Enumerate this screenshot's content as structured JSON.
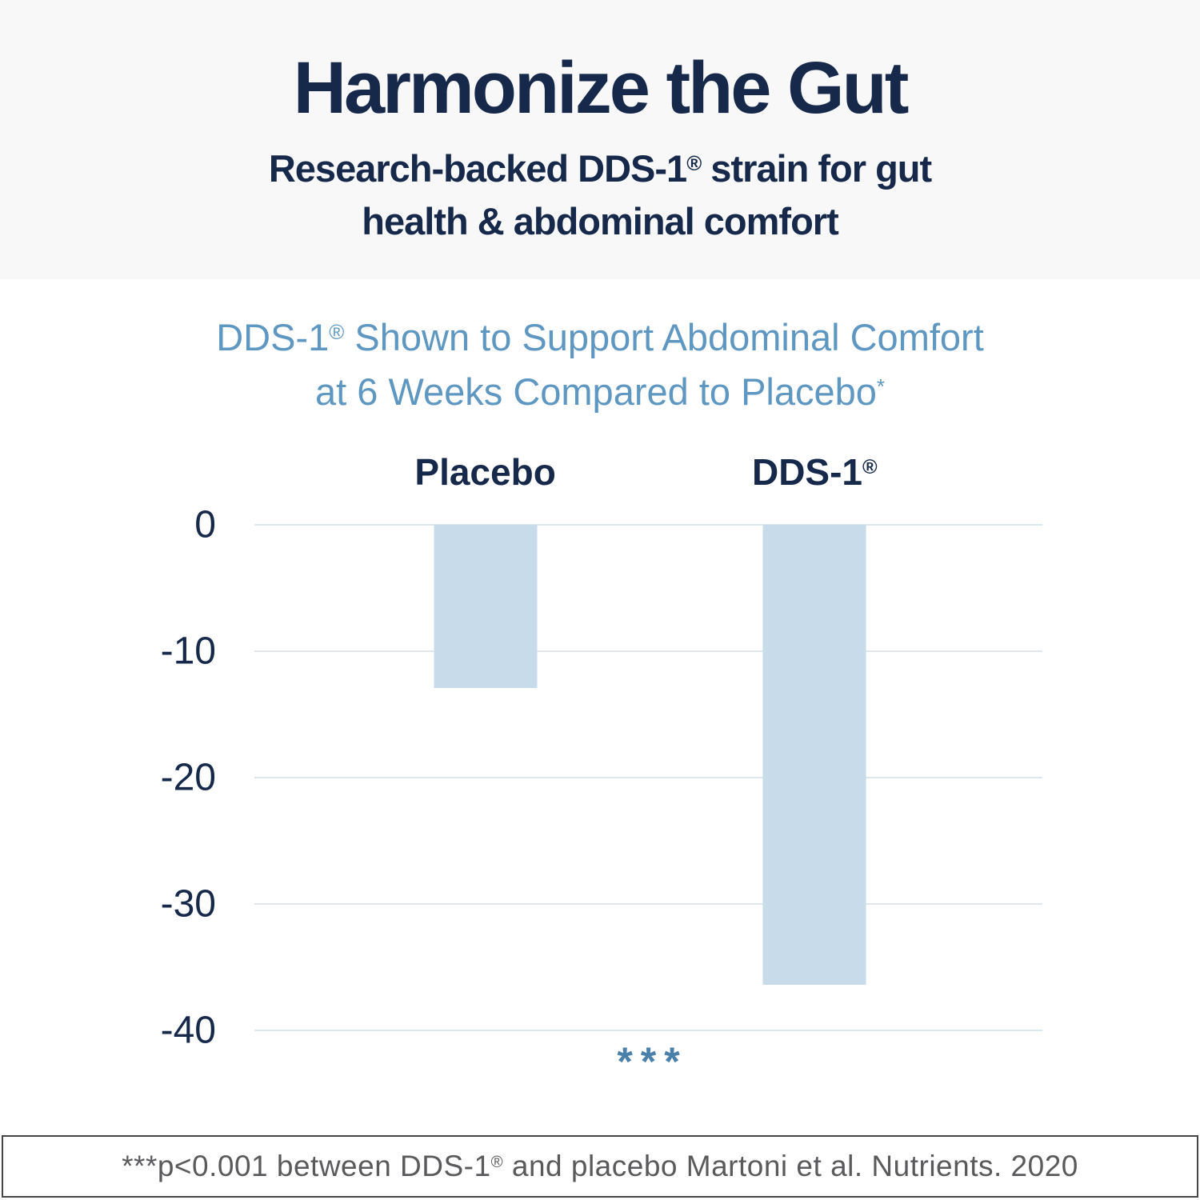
{
  "header": {
    "title": "Harmonize the Gut",
    "subtitle_line1_pre": "Research-backed DDS-1",
    "subtitle_line1_sup": "®",
    "subtitle_line1_post": " strain for gut",
    "subtitle_line2": "health & abdominal comfort"
  },
  "chart": {
    "title_line1_pre": "DDS-1",
    "title_line1_sup": "®",
    "title_line1_post": " Shown to Support Abdominal Comfort",
    "title_line2_pre": "at 6 Weeks Compared to Placebo",
    "title_line2_sup": "*",
    "col1_label": "Placebo",
    "col2_label_pre": "DDS-1",
    "col2_label_sup": "®",
    "annotation": "***"
  },
  "footer": {
    "text_pre": "***p<0.001 between DDS-1",
    "text_sup": "®",
    "text_post": " and placebo Martoni et al. Nutrients. 2020"
  },
  "colors": {
    "navy": "#16294a",
    "chart_title_blue": "#5e97c1",
    "annotation_blue": "#4a80aa",
    "bar_fill": "#c7dbea",
    "gridline": "#dee7ef",
    "header_background": "#f8f8f8",
    "footer_border": "#454545",
    "footer_text": "#5a5a5c"
  },
  "chart_data": {
    "type": "bar",
    "title": "DDS-1® Shown to Support Abdominal Comfort at 6 Weeks Compared to Placebo*",
    "categories": [
      "Placebo",
      "DDS-1®"
    ],
    "values": [
      -12.9,
      -36.4
    ],
    "xlabel": "",
    "ylabel": "",
    "ylim": [
      -40,
      0
    ],
    "yticks": [
      0,
      -10,
      -20,
      -30,
      -40
    ],
    "grid": true,
    "legend_position": "none",
    "bar_color": "#c7dbea",
    "annotation_below_plot": "***",
    "footnote": "***p<0.001 between DDS-1® and placebo Martoni et al. Nutrients. 2020"
  }
}
